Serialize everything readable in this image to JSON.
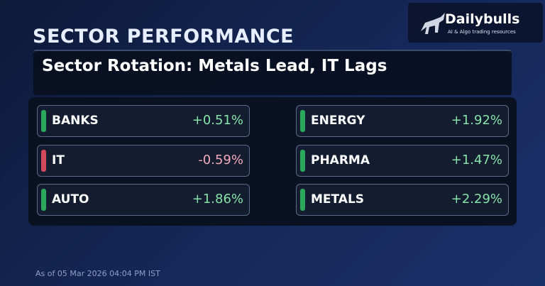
{
  "header": {
    "title": "SECTOR PERFORMANCE",
    "logo": {
      "name": "Dailybulls",
      "tagline": "AI & Algo trading resources"
    }
  },
  "headline": "Sector Rotation: Metals Lead, IT Lags",
  "sectors": [
    {
      "name": "BANKS",
      "change": "+0.51%",
      "color": "#2aa85c",
      "text_color": "#86e3a8"
    },
    {
      "name": "IT",
      "change": "-0.59%",
      "color": "#d4485c",
      "text_color": "#f4a9b8"
    },
    {
      "name": "AUTO",
      "change": "+1.86%",
      "color": "#2aa85c",
      "text_color": "#86e3a8"
    },
    {
      "name": "ENERGY",
      "change": "+1.92%",
      "color": "#2aa85c",
      "text_color": "#86e3a8"
    },
    {
      "name": "PHARMA",
      "change": "+1.47%",
      "color": "#2aa85c",
      "text_color": "#86e3a8"
    },
    {
      "name": "METALS",
      "change": "+2.29%",
      "color": "#2aa85c",
      "text_color": "#86e3a8"
    }
  ],
  "footer": "As of 05 Mar 2026 04:04 PM IST"
}
